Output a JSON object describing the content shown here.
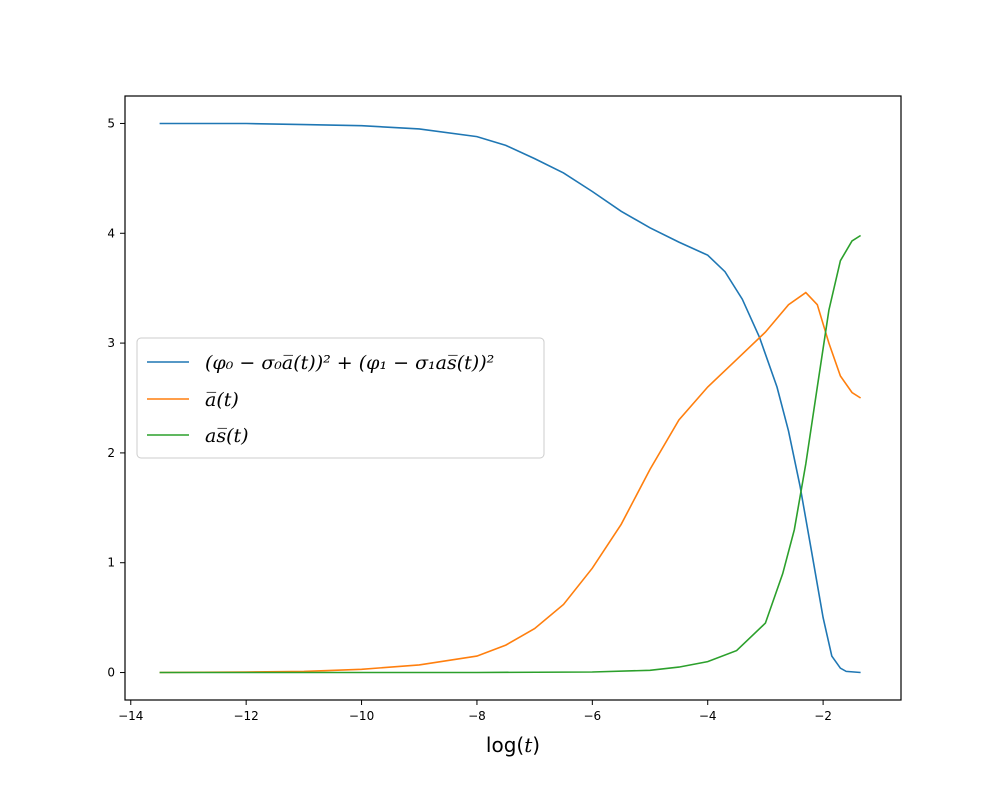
{
  "chart_data": {
    "type": "line",
    "title": "",
    "xlabel": "log(t)",
    "ylabel": "",
    "xlim": [
      -14.1,
      -0.65
    ],
    "ylim": [
      -0.25,
      5.25
    ],
    "xticks": [
      -14,
      -12,
      -10,
      -8,
      -6,
      -4,
      -2
    ],
    "yticks": [
      0,
      1,
      2,
      3,
      4,
      5
    ],
    "grid": false,
    "legend_position": "center-left",
    "series": [
      {
        "name": "(φ₀ − σ₀a̅(t))² + (φ₁ − σ₁as̅(t))²",
        "color": "#1f77b4",
        "points": [
          [
            -13.5,
            5.0
          ],
          [
            -12,
            5.0
          ],
          [
            -11,
            4.99
          ],
          [
            -10,
            4.98
          ],
          [
            -9,
            4.95
          ],
          [
            -8,
            4.88
          ],
          [
            -7.5,
            4.8
          ],
          [
            -7,
            4.68
          ],
          [
            -6.5,
            4.55
          ],
          [
            -6,
            4.38
          ],
          [
            -5.5,
            4.2
          ],
          [
            -5,
            4.05
          ],
          [
            -4.5,
            3.92
          ],
          [
            -4,
            3.8
          ],
          [
            -3.7,
            3.65
          ],
          [
            -3.4,
            3.4
          ],
          [
            -3.1,
            3.05
          ],
          [
            -2.8,
            2.6
          ],
          [
            -2.6,
            2.2
          ],
          [
            -2.4,
            1.7
          ],
          [
            -2.2,
            1.1
          ],
          [
            -2.0,
            0.5
          ],
          [
            -1.85,
            0.15
          ],
          [
            -1.7,
            0.04
          ],
          [
            -1.6,
            0.01
          ],
          [
            -1.35,
            0.0
          ]
        ]
      },
      {
        "name": "a̅(t)",
        "color": "#ff7f0e",
        "points": [
          [
            -13.5,
            0.0
          ],
          [
            -12,
            0.005
          ],
          [
            -11,
            0.01
          ],
          [
            -10,
            0.03
          ],
          [
            -9,
            0.07
          ],
          [
            -8,
            0.15
          ],
          [
            -7.5,
            0.25
          ],
          [
            -7,
            0.4
          ],
          [
            -6.5,
            0.62
          ],
          [
            -6,
            0.95
          ],
          [
            -5.5,
            1.35
          ],
          [
            -5,
            1.85
          ],
          [
            -4.5,
            2.3
          ],
          [
            -4,
            2.6
          ],
          [
            -3.5,
            2.85
          ],
          [
            -3,
            3.1
          ],
          [
            -2.6,
            3.35
          ],
          [
            -2.3,
            3.46
          ],
          [
            -2.1,
            3.35
          ],
          [
            -1.9,
            3.0
          ],
          [
            -1.7,
            2.7
          ],
          [
            -1.5,
            2.55
          ],
          [
            -1.35,
            2.5
          ]
        ]
      },
      {
        "name": "as̅(t)",
        "color": "#2ca02c",
        "points": [
          [
            -13.5,
            0.0
          ],
          [
            -10,
            0.0
          ],
          [
            -8,
            0.0
          ],
          [
            -6,
            0.005
          ],
          [
            -5,
            0.02
          ],
          [
            -4.5,
            0.05
          ],
          [
            -4,
            0.1
          ],
          [
            -3.5,
            0.2
          ],
          [
            -3,
            0.45
          ],
          [
            -2.7,
            0.9
          ],
          [
            -2.5,
            1.3
          ],
          [
            -2.3,
            1.9
          ],
          [
            -2.1,
            2.6
          ],
          [
            -1.9,
            3.3
          ],
          [
            -1.7,
            3.75
          ],
          [
            -1.5,
            3.93
          ],
          [
            -1.35,
            3.98
          ]
        ]
      }
    ]
  }
}
